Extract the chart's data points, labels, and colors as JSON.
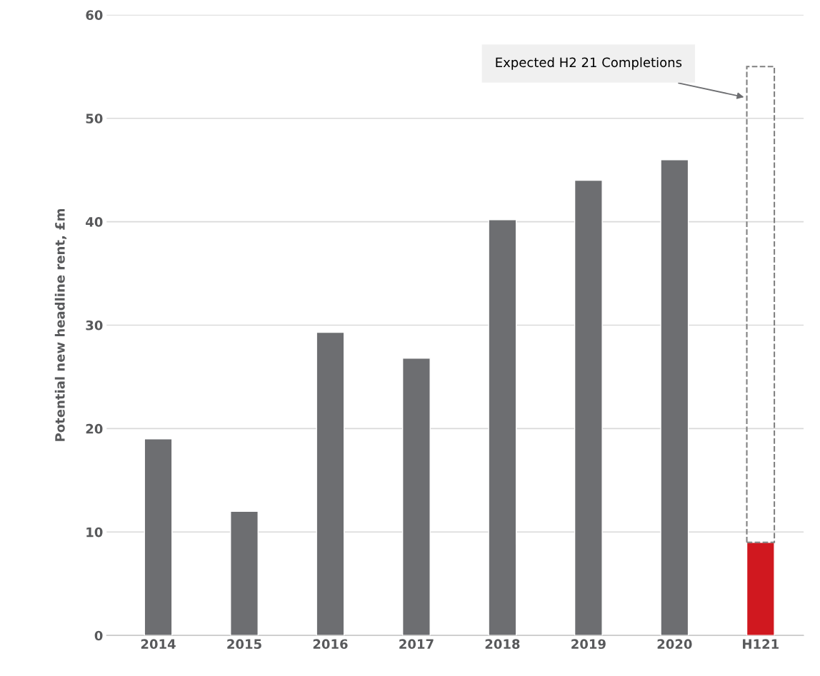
{
  "chart_data": {
    "type": "bar",
    "ylabel": "Potential new headline rent, £m",
    "categories": [
      "2014",
      "2015",
      "2016",
      "2017",
      "2018",
      "2019",
      "2020",
      "H121"
    ],
    "stacked": true,
    "series": [
      {
        "colors": [
          "#6d6e71",
          "#6d6e71",
          "#6d6e71",
          "#6d6e71",
          "#6d6e71",
          "#6d6e71",
          "#6d6e71",
          "#d0181f"
        ],
        "values": [
          19,
          12,
          29.3,
          26.8,
          40.2,
          44,
          46,
          9
        ]
      },
      {
        "color": "#808080",
        "line_style": "dashed",
        "values": [
          null,
          null,
          null,
          null,
          null,
          null,
          null,
          46
        ]
      }
    ],
    "ylim": [
      0,
      60
    ],
    "yticks": [
      0,
      10,
      20,
      30,
      40,
      50,
      60
    ],
    "grid": "y",
    "legend": false,
    "annotations": [
      "Expected H2 21 Completions"
    ]
  }
}
